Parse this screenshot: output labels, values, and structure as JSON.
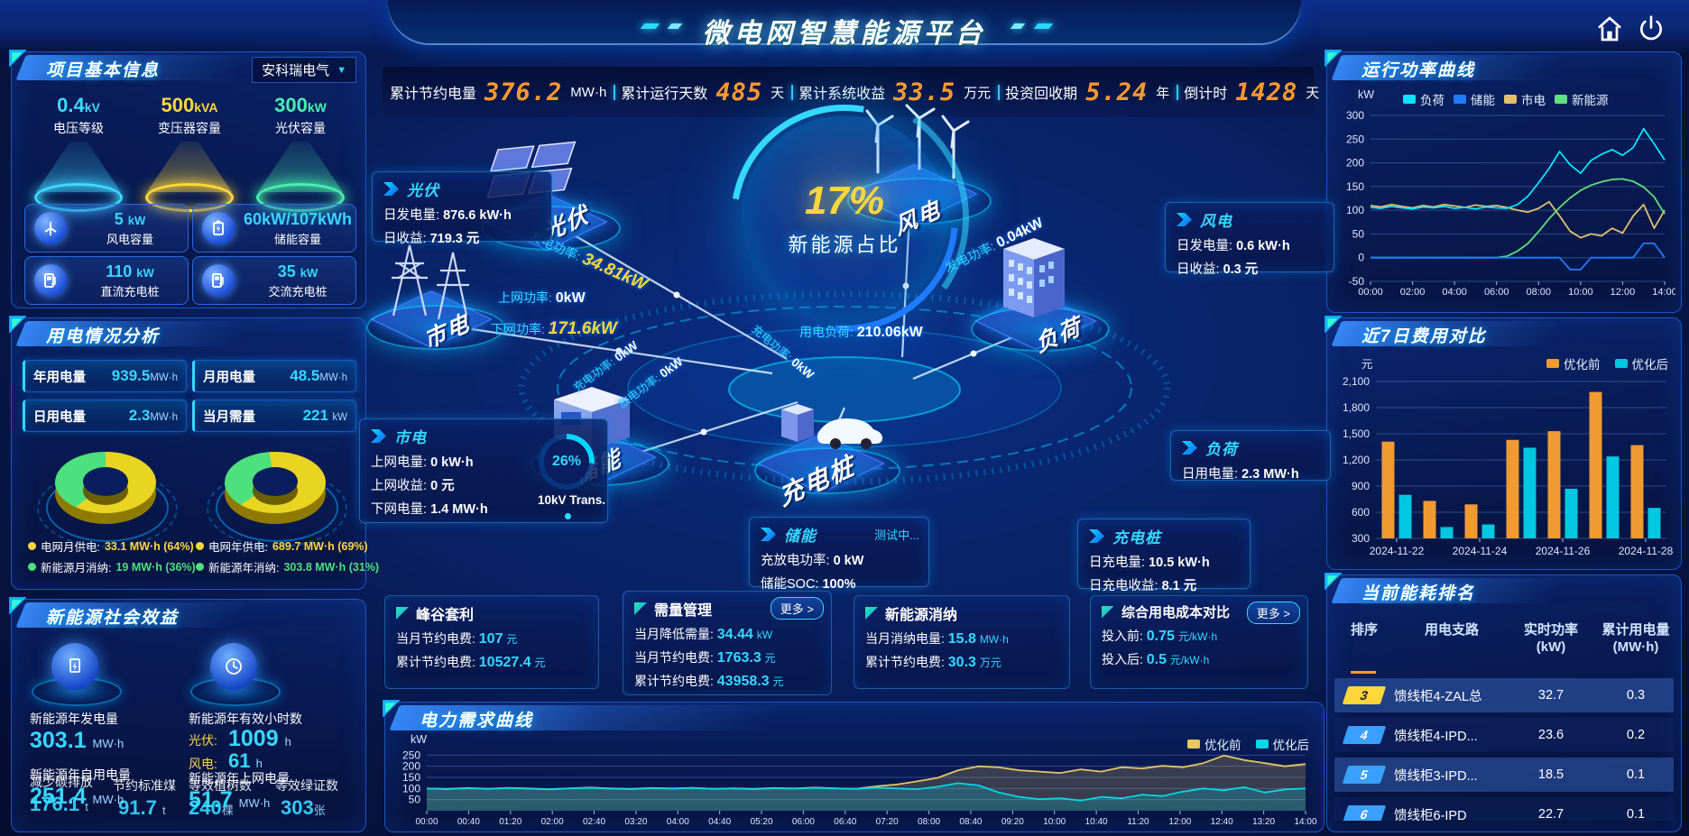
{
  "header": {
    "title": "微电网智慧能源平台",
    "stats": [
      {
        "label": "累计节约电量",
        "value": "376.2",
        "unit": "MW·h"
      },
      {
        "label": "累计运行天数",
        "value": "485",
        "unit": "天"
      },
      {
        "label": "累计系统收益",
        "value": "33.5",
        "unit": "万元"
      },
      {
        "label": "投资回收期",
        "value": "5.24",
        "unit": "年"
      },
      {
        "label": "倒计时",
        "value": "1428",
        "unit": "天"
      }
    ]
  },
  "left": {
    "project": {
      "title": "项目基本信息",
      "company": "安科瑞电气",
      "platforms": [
        {
          "value": "0.4",
          "unit": "kV",
          "label": "电压等级"
        },
        {
          "value": "500",
          "unit": "kVA",
          "label": "变压器容量"
        },
        {
          "value": "300",
          "unit": "kW",
          "label": "光伏容量"
        }
      ],
      "cards": [
        {
          "value": "5",
          "unit": "kW",
          "label": "风电容量"
        },
        {
          "value": "60kW/107kWh",
          "unit": "",
          "label": "储能容量"
        },
        {
          "value": "110",
          "unit": "kW",
          "label": "直流充电桩"
        },
        {
          "value": "35",
          "unit": "kW",
          "label": "交流充电桩"
        }
      ]
    },
    "usage": {
      "title": "用电情况分析",
      "stats": [
        {
          "label": "年用电量",
          "value": "939.5",
          "unit": "MW·h"
        },
        {
          "label": "月用电量",
          "value": "48.5",
          "unit": "MW·h"
        },
        {
          "label": "日用电量",
          "value": "2.3",
          "unit": "MW·h"
        },
        {
          "label": "当月需量",
          "value": "221",
          "unit": "kW"
        }
      ],
      "donuts": [
        {
          "grid_pct": 64,
          "new_pct": 36
        },
        {
          "grid_pct": 69,
          "new_pct": 31
        }
      ],
      "legend": [
        {
          "label": "电网月供电:",
          "value": "33.1 MW·h (64%)"
        },
        {
          "label": "电网年供电:",
          "value": "689.7 MW·h (69%)"
        },
        {
          "label": "新能源月消纳:",
          "value": "19 MW·h (36%)"
        },
        {
          "label": "新能源年消纳:",
          "value": "303.8 MW·h (31%)"
        }
      ]
    },
    "social": {
      "title": "新能源社会效益",
      "g1": {
        "label1": "新能源年发电量",
        "value1": "303.1",
        "unit1": "MW·h",
        "label2": "新能源年自用电量",
        "value2": "251.4",
        "unit2": "MW·h",
        "b1_label": "减少碳排放",
        "b1_value": "176.1",
        "b1_unit": "t",
        "b2_label": "节约标准煤",
        "b2_value": "91.7",
        "b2_unit": "t"
      },
      "g2": {
        "label1": "新能源年有效小时数",
        "line1_k": "光伏:",
        "line1_v": "1009",
        "line1_u": "h",
        "line2_k": "风电:",
        "line2_v": "61",
        "line2_u": "h",
        "label2": "新能源年上网电量",
        "value2": "51.7",
        "unit2": "MW·h",
        "b1_label": "等效植树数",
        "b1_value": "240",
        "b1_unit": "棵",
        "b2_label": "等效绿证数",
        "b2_value": "303",
        "b2_unit": "张"
      }
    }
  },
  "center": {
    "gauge": {
      "value": "17%",
      "label": "新能源占比"
    },
    "nodes": {
      "pv": "光伏",
      "wind": "风电",
      "grid": "市电",
      "storage": "储能",
      "charger": "充电桩",
      "load": "负荷"
    },
    "flows": [
      {
        "label": "发电功率:",
        "value": "34.81kW"
      },
      {
        "label": "上网功率:",
        "value": "0kW"
      },
      {
        "label": "下网功率:",
        "value": "171.6kW"
      },
      {
        "label": "发电功率:",
        "value": "0.04kW"
      },
      {
        "label": "用电负荷:",
        "value": "210.06kW"
      },
      {
        "label": "充电功率:",
        "value": "0kW"
      },
      {
        "label": "放电功率:",
        "value": "0kW"
      },
      {
        "label": "充电功率:",
        "value": "0kW"
      }
    ],
    "info": {
      "pv": {
        "title": "光伏",
        "r0k": "日发电量:",
        "r0v": "876.6 kW·h",
        "r1k": "日收益:",
        "r1v": "719.3 元"
      },
      "wind": {
        "title": "风电",
        "r0k": "日发电量:",
        "r0v": "0.6 kW·h",
        "r1k": "日收益:",
        "r1v": "0.3 元"
      },
      "grid": {
        "title": "市电",
        "r0k": "上网电量:",
        "r0v": "0 kW·h",
        "r1k": "上网收益:",
        "r1v": "0 元",
        "r2k": "下网电量:",
        "r2v": "1.4 MW·h",
        "gauge_value": "26%",
        "gauge_label": "10kV Trans."
      },
      "storage": {
        "title": "储能",
        "badge": "测试中...",
        "r0k": "充放电功率:",
        "r0v": "0 kW",
        "r1k": "储能SOC:",
        "r1v": "100%"
      },
      "load": {
        "title": "负荷",
        "r0k": "日用电量:",
        "r0v": "2.3 MW·h"
      },
      "charger": {
        "title": "充电桩",
        "r0k": "日充电量:",
        "r0v": "10.5 kW·h",
        "r1k": "日充电收益:",
        "r1v": "8.1 元"
      }
    },
    "kpi": [
      {
        "title": "峰谷套利",
        "rows": [
          {
            "k": "当月节约电费:",
            "v": "107",
            "u": "元"
          },
          {
            "k": "累计节约电费:",
            "v": "10527.4",
            "u": "元"
          }
        ]
      },
      {
        "title": "需量管理",
        "more": "更多 >",
        "rows": [
          {
            "k": "当月降低需量:",
            "v": "34.44",
            "u": "kW"
          },
          {
            "k": "当月节约电费:",
            "v": "1763.3",
            "u": "元"
          },
          {
            "k": "累计节约电费:",
            "v": "43958.3",
            "u": "元"
          }
        ]
      },
      {
        "title": "新能源消纳",
        "rows": [
          {
            "k": "当月消纳电量:",
            "v": "15.8",
            "u": "MW·h"
          },
          {
            "k": "累计节约电费:",
            "v": "30.3",
            "u": "万元"
          }
        ]
      },
      {
        "title": "综合用电成本对比",
        "more": "更多 >",
        "rows": [
          {
            "k": "投入前:",
            "v": "0.75",
            "u": "元/kW·h"
          },
          {
            "k": "投入后:",
            "v": "0.5",
            "u": "元/kW·h"
          }
        ]
      }
    ]
  },
  "right": {
    "power_title": "运行功率曲线",
    "cost_title": "近7日费用对比",
    "rank": {
      "title": "当前能耗排名",
      "headers": [
        "排序",
        "用电支路",
        "实时功率",
        "累计用电量"
      ],
      "units": [
        "",
        "",
        "(kW)",
        "(MW·h)"
      ],
      "rows": [
        {
          "rank": "3",
          "branch": "馈线柜4-ZAL总",
          "power": "32.7",
          "energy": "0.3"
        },
        {
          "rank": "4",
          "branch": "馈线柜4-IPD...",
          "power": "23.6",
          "energy": "0.2"
        },
        {
          "rank": "5",
          "branch": "馈线柜3-IPD...",
          "power": "18.5",
          "energy": "0.1"
        },
        {
          "rank": "6",
          "branch": "馈线柜6-IPD",
          "power": "22.7",
          "energy": "0.1"
        }
      ]
    }
  },
  "bottom": {
    "demand_title": "电力需求曲线"
  },
  "colors": {
    "accent_cyan": "#00e0ff",
    "accent_orange": "#ff9a2a",
    "accent_yellow": "#ffd73a",
    "accent_green": "#4ee07c",
    "load_line": "#00e5ff",
    "storage_line": "#1f7bff",
    "grid_line": "#e3c06a",
    "renewable_line": "#5fe07e",
    "before_color": "#f09a32",
    "after_color": "#00c8e0",
    "rank_badge_gold": "#ffd73a",
    "rank_badge_blue": "#3aa0ff"
  },
  "chart_data": [
    {
      "id": "power-curve-chart",
      "type": "line",
      "title": "运行功率曲线",
      "unit": "kW",
      "x_ticks": [
        "00:00",
        "02:00",
        "04:00",
        "06:00",
        "08:00",
        "10:00",
        "12:00",
        "14:00"
      ],
      "ylim": [
        -50,
        300
      ],
      "yticks": [
        -50,
        0,
        50,
        100,
        150,
        200,
        250,
        300
      ],
      "ytick_labels": [
        "-50",
        "0",
        "50",
        "100",
        "150",
        "200",
        "250",
        "300"
      ],
      "legend_position": "top-center",
      "margins": {
        "l": 44,
        "r": 12,
        "t": 8,
        "b": 26
      },
      "draw_order": [
        2,
        3,
        1,
        0
      ],
      "series": [
        {
          "name": "负荷",
          "color": "#00e5ff",
          "values": [
            106,
            104,
            108,
            105,
            103,
            107,
            105,
            108,
            104,
            106,
            103,
            107,
            105,
            104,
            112,
            130,
            158,
            188,
            224,
            196,
            178,
            205,
            218,
            228,
            216,
            232,
            272,
            240,
            206
          ]
        },
        {
          "name": "储能",
          "color": "#1f7bff",
          "values": [
            0,
            0,
            0,
            0,
            0,
            0,
            0,
            0,
            0,
            0,
            0,
            0,
            0,
            0,
            0,
            0,
            0,
            0,
            0,
            -25,
            -25,
            0,
            0,
            0,
            0,
            0,
            30,
            30,
            0
          ]
        },
        {
          "name": "市电",
          "color": "#e3c06a",
          "values": [
            110,
            107,
            112,
            108,
            105,
            110,
            107,
            112,
            109,
            106,
            111,
            108,
            110,
            106,
            100,
            96,
            104,
            118,
            88,
            56,
            42,
            50,
            46,
            62,
            52,
            88,
            112,
            62,
            100
          ]
        },
        {
          "name": "新能源",
          "color": "#5fe07e",
          "values": [
            0,
            0,
            0,
            0,
            0,
            0,
            0,
            0,
            0,
            0,
            0,
            0,
            0,
            3,
            14,
            30,
            55,
            82,
            106,
            126,
            142,
            153,
            160,
            165,
            166,
            161,
            149,
            128,
            92
          ]
        }
      ]
    },
    {
      "id": "cost-compare-chart",
      "type": "bar",
      "title": "近7日费用对比",
      "unit": "元",
      "categories": [
        "2024-11-22",
        "2024-11-23",
        "2024-11-24",
        "2024-11-25",
        "2024-11-26",
        "2024-11-27",
        "2024-11-28"
      ],
      "x_tick_labels": [
        "2024-11-22",
        "2024-11-24",
        "2024-11-26",
        "2024-11-28"
      ],
      "x_tick_indices": [
        0,
        2,
        4,
        6
      ],
      "ylim": [
        300,
        2100
      ],
      "yticks": [
        300,
        600,
        900,
        1200,
        1500,
        1800,
        2100
      ],
      "ytick_labels": [
        "300",
        "600",
        "900",
        "1,200",
        "1,500",
        "1,800",
        "2,100"
      ],
      "legend_position": "top-right",
      "margins": {
        "l": 50,
        "r": 10,
        "t": 8,
        "b": 26
      },
      "series": [
        {
          "name": "优化前",
          "color": "#f09a32",
          "values": [
            1410,
            730,
            690,
            1430,
            1530,
            1980,
            1370
          ]
        },
        {
          "name": "优化后",
          "color": "#00c8e0",
          "values": [
            800,
            430,
            460,
            1340,
            870,
            1240,
            650
          ]
        }
      ]
    },
    {
      "id": "demand-curve-chart",
      "type": "area",
      "title": "电力需求曲线",
      "unit": "kW",
      "x_ticks": [
        "00:00",
        "00:40",
        "01:20",
        "02:00",
        "02:40",
        "03:20",
        "04:00",
        "04:40",
        "05:20",
        "06:00",
        "06:40",
        "07:20",
        "08:00",
        "08:40",
        "09:20",
        "10:00",
        "10:40",
        "11:20",
        "12:00",
        "12:40",
        "13:20",
        "14:00"
      ],
      "ylim": [
        0,
        300
      ],
      "yticks": [
        50,
        100,
        150,
        200,
        250
      ],
      "ytick_labels": [
        "50",
        "100",
        "150",
        "200",
        "250"
      ],
      "legend_position": "top-right",
      "margins": {
        "l": 42,
        "r": 14,
        "t": 6,
        "b": 20
      },
      "xtick_font": 10,
      "series": [
        {
          "name": "优化前",
          "color": "#e8c660",
          "values": [
            100,
            98,
            102,
            99,
            103,
            100,
            97,
            101,
            104,
            100,
            98,
            102,
            100,
            103,
            99,
            101,
            98,
            102,
            100,
            104,
            101,
            99,
            110,
            118,
            132,
            148,
            182,
            200,
            195,
            182,
            176,
            170,
            186,
            176,
            196,
            190,
            202,
            196,
            214,
            248,
            228,
            214,
            200,
            210
          ]
        },
        {
          "name": "优化后",
          "color": "#00d8e8",
          "values": [
            100,
            97,
            101,
            98,
            102,
            99,
            96,
            100,
            103,
            99,
            97,
            101,
            99,
            102,
            98,
            100,
            97,
            101,
            99,
            103,
            100,
            98,
            104,
            100,
            97,
            108,
            124,
            114,
            82,
            62,
            52,
            56,
            46,
            62,
            56,
            72,
            66,
            86,
            100,
            92,
            106,
            82,
            96,
            100
          ]
        }
      ]
    }
  ]
}
